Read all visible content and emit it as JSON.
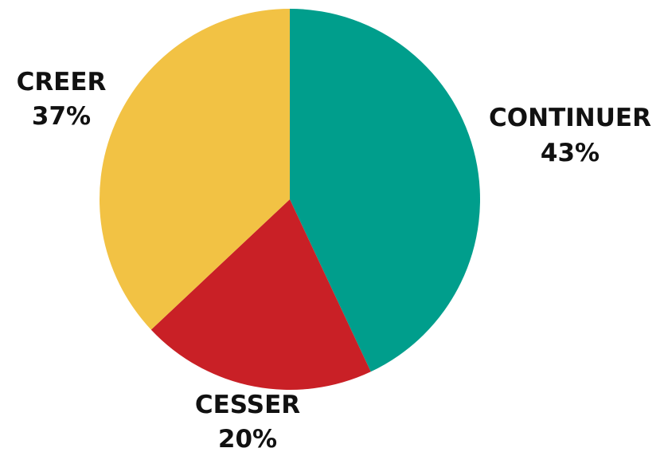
{
  "chart_data": {
    "type": "pie",
    "title": "",
    "slices": [
      {
        "label": "CONTINUER",
        "value": 43,
        "value_label": "43%",
        "color": "#009e8c"
      },
      {
        "label": "CESSER",
        "value": 20,
        "value_label": "20%",
        "color": "#c92026"
      },
      {
        "label": "CREER",
        "value": 37,
        "value_label": "37%",
        "color": "#f2c244"
      }
    ],
    "start": "top",
    "direction": "clockwise",
    "legend": "none"
  }
}
